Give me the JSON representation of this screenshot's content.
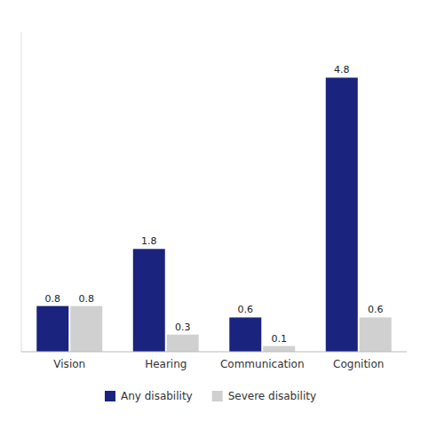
{
  "chart_data": {
    "type": "bar",
    "categories": [
      "Vision",
      "Hearing",
      "Communication",
      "Cognition"
    ],
    "series": [
      {
        "name": "Any disability",
        "color": "#1a237e",
        "values": [
          0.8,
          1.8,
          0.6,
          4.8
        ]
      },
      {
        "name": "Severe disability",
        "color": "#d0d0d0",
        "values": [
          0.8,
          0.3,
          0.1,
          0.6
        ]
      }
    ],
    "ylim": [
      0,
      5.6
    ],
    "data_labels": true,
    "tick_labels": "x",
    "legend": "bottom"
  }
}
